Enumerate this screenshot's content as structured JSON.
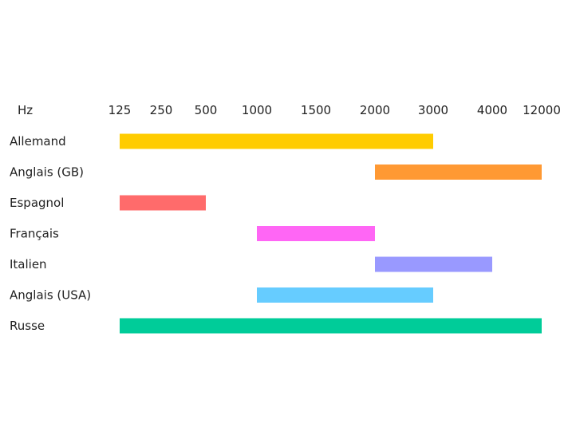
{
  "chart_data": {
    "type": "bar",
    "orientation": "horizontal-range",
    "unit_label": "Hz",
    "ticks": [
      "125",
      "250",
      "500",
      "1000",
      "1500",
      "2000",
      "3000",
      "4000",
      "12000"
    ],
    "grid": false,
    "legend": "none",
    "series": [
      {
        "label": "Allemand",
        "from": "125",
        "to": "3000",
        "color": "#ffcc00"
      },
      {
        "label": "Anglais (GB)",
        "from": "2000",
        "to": "12000",
        "color": "#ff9933"
      },
      {
        "label": "Espagnol",
        "from": "125",
        "to": "500",
        "color": "#ff6b6b"
      },
      {
        "label": "Français",
        "from": "1000",
        "to": "2000",
        "color": "#ff66f5"
      },
      {
        "label": "Italien",
        "from": "2000",
        "to": "4000",
        "color": "#9999ff"
      },
      {
        "label": "Anglais (USA)",
        "from": "1000",
        "to": "3000",
        "color": "#66ccff"
      },
      {
        "label": "Russe",
        "from": "125",
        "to": "12000",
        "color": "#00cc99"
      }
    ]
  }
}
